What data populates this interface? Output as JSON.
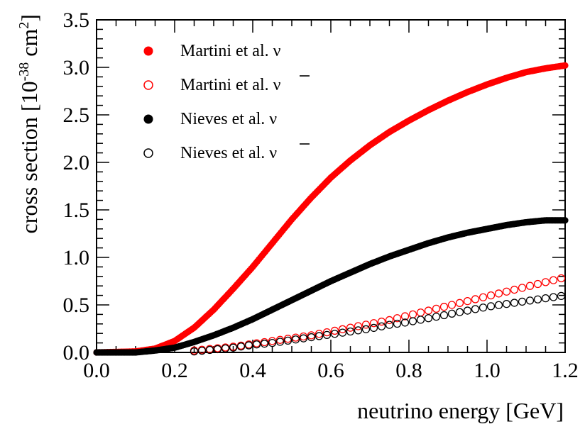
{
  "chart_data": {
    "type": "scatter",
    "xlabel": "neutrino energy [GeV]",
    "ylabel": "cross section [10",
    "ylabel_exp": "-38",
    "ylabel_unit": " cm",
    "ylabel_unit_exp": "2",
    "ylabel_close": "]",
    "xlim": [
      0.0,
      1.2
    ],
    "ylim": [
      0.0,
      3.5
    ],
    "xticks": [
      "0.0",
      "0.2",
      "0.4",
      "0.6",
      "0.8",
      "1.0",
      "1.2"
    ],
    "yticks": [
      "0.0",
      "0.5",
      "1.0",
      "1.5",
      "2.0",
      "2.5",
      "3.0",
      "3.5"
    ],
    "grid": false,
    "legend_position": "top-left",
    "series": [
      {
        "name_base": "Martini et al.",
        "name_symbol": "ν",
        "antineutrino": false,
        "color": "#ff0000",
        "filled": true,
        "x": [
          0.0,
          0.1,
          0.15,
          0.2,
          0.25,
          0.3,
          0.35,
          0.4,
          0.45,
          0.5,
          0.55,
          0.6,
          0.65,
          0.7,
          0.75,
          0.8,
          0.85,
          0.9,
          0.95,
          1.0,
          1.05,
          1.1,
          1.15,
          1.2
        ],
        "y": [
          0.0,
          0.01,
          0.04,
          0.12,
          0.26,
          0.45,
          0.67,
          0.9,
          1.15,
          1.4,
          1.63,
          1.84,
          2.02,
          2.18,
          2.32,
          2.44,
          2.55,
          2.65,
          2.74,
          2.82,
          2.89,
          2.95,
          2.99,
          3.02
        ]
      },
      {
        "name_base": "Martini et al.",
        "name_symbol": "ν",
        "antineutrino": true,
        "color": "#ff0000",
        "filled": false,
        "x": [
          0.25,
          0.3,
          0.35,
          0.4,
          0.45,
          0.5,
          0.55,
          0.6,
          0.65,
          0.7,
          0.75,
          0.8,
          0.85,
          0.9,
          0.95,
          1.0,
          1.05,
          1.1,
          1.15,
          1.2
        ],
        "y": [
          0.02,
          0.04,
          0.06,
          0.09,
          0.12,
          0.15,
          0.18,
          0.22,
          0.26,
          0.3,
          0.34,
          0.39,
          0.44,
          0.49,
          0.54,
          0.59,
          0.64,
          0.69,
          0.74,
          0.79
        ]
      },
      {
        "name_base": "Nieves et al.",
        "name_symbol": "ν",
        "antineutrino": false,
        "color": "#000000",
        "filled": true,
        "x": [
          0.0,
          0.1,
          0.15,
          0.2,
          0.25,
          0.3,
          0.35,
          0.4,
          0.45,
          0.5,
          0.55,
          0.6,
          0.65,
          0.7,
          0.75,
          0.8,
          0.85,
          0.9,
          0.95,
          1.0,
          1.05,
          1.1,
          1.15,
          1.2
        ],
        "y": [
          0.0,
          0.0,
          0.02,
          0.05,
          0.11,
          0.18,
          0.26,
          0.35,
          0.45,
          0.55,
          0.65,
          0.75,
          0.84,
          0.93,
          1.01,
          1.08,
          1.15,
          1.21,
          1.26,
          1.3,
          1.34,
          1.37,
          1.39,
          1.39
        ]
      },
      {
        "name_base": "Nieves et al.",
        "name_symbol": "ν",
        "antineutrino": true,
        "color": "#000000",
        "filled": false,
        "x": [
          0.25,
          0.3,
          0.35,
          0.4,
          0.45,
          0.5,
          0.55,
          0.6,
          0.65,
          0.7,
          0.75,
          0.8,
          0.85,
          0.9,
          0.95,
          1.0,
          1.05,
          1.1,
          1.15,
          1.2
        ],
        "y": [
          0.01,
          0.03,
          0.05,
          0.08,
          0.1,
          0.13,
          0.16,
          0.19,
          0.22,
          0.25,
          0.29,
          0.32,
          0.36,
          0.4,
          0.44,
          0.48,
          0.51,
          0.54,
          0.57,
          0.6
        ]
      }
    ]
  }
}
